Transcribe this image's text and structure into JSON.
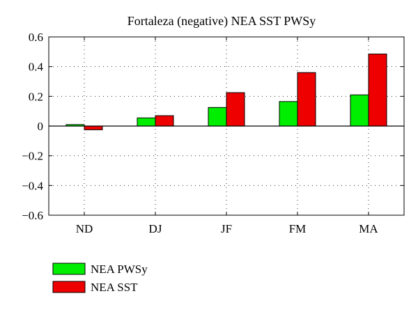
{
  "chart_data": {
    "type": "bar",
    "title": "Fortaleza (negative) NEA SST PWSy",
    "xlabel": "",
    "ylabel": "",
    "categories": [
      "ND",
      "DJ",
      "JF",
      "FM",
      "MA"
    ],
    "series": [
      {
        "name": "NEA PWSy",
        "color": "#00ee00",
        "values": [
          0.01,
          0.055,
          0.125,
          0.165,
          0.21
        ]
      },
      {
        "name": "NEA SST",
        "color": "#ee0000",
        "values": [
          -0.025,
          0.07,
          0.225,
          0.36,
          0.485
        ]
      }
    ],
    "ylim": [
      -0.6,
      0.6
    ],
    "yticks": [
      -0.6,
      -0.4,
      -0.2,
      0,
      0.2,
      0.4,
      0.6
    ],
    "ytick_labels": [
      "−0.6",
      "−0.4",
      "−0.2",
      "0",
      "0.2",
      "0.4",
      "0.6"
    ],
    "grid": true,
    "legend_position": "bottom-left, below plot"
  }
}
